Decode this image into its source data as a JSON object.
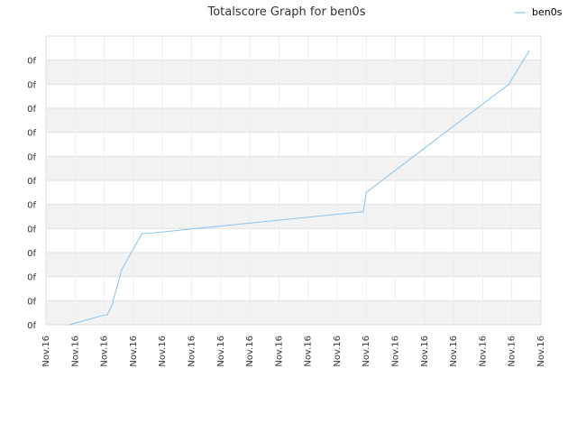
{
  "chart_data": {
    "type": "line",
    "title": "Totalscore Graph for ben0s",
    "xlabel": "",
    "ylabel": "",
    "x_tick_labels": [
      "Nov.16",
      "Nov.16",
      "Nov.16",
      "Nov.16",
      "Nov.16",
      "Nov.16",
      "Nov.16",
      "Nov.16",
      "Nov.16",
      "Nov.16",
      "Nov.16",
      "Nov.16",
      "Nov.16",
      "Nov.16",
      "Nov.16",
      "Nov.16",
      "Nov.16",
      "Nov.16"
    ],
    "y_tick_labels": [
      "0f",
      "0f",
      "0f",
      "0f",
      "0f",
      "0f",
      "0f",
      "0f",
      "0f",
      "0f",
      "0f",
      "0f"
    ],
    "xlim": [
      0,
      17
    ],
    "ylim": [
      0,
      12
    ],
    "grid": true,
    "legend_position": "top-right",
    "series": [
      {
        "name": "ben0s",
        "color": "#8cc3ed",
        "x": [
          0.8,
          2.0,
          2.1,
          2.3,
          2.3,
          2.4,
          2.4,
          2.6,
          2.6,
          3.3,
          3.3,
          3.5,
          3.5,
          10.9,
          10.9,
          11.0,
          11.0,
          15.9,
          15.9,
          16.6
        ],
        "y": [
          0.0,
          0.4,
          0.4,
          0.9,
          1.0,
          1.4,
          1.4,
          2.3,
          2.3,
          3.8,
          3.8,
          3.8,
          3.8,
          4.7,
          4.7,
          5.5,
          5.5,
          10.0,
          10.0,
          11.4
        ]
      }
    ]
  }
}
